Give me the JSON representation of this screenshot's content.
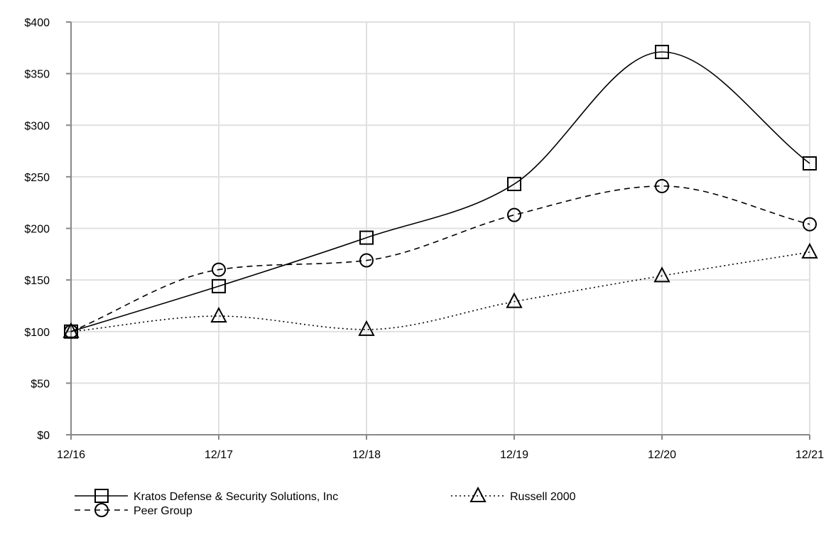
{
  "chart_data": {
    "type": "line",
    "title": "",
    "xlabel": "",
    "ylabel": "",
    "categories": [
      "12/16",
      "12/17",
      "12/18",
      "12/19",
      "12/20",
      "12/21"
    ],
    "ylim": [
      0,
      400
    ],
    "yticks": [
      0,
      50,
      100,
      150,
      200,
      250,
      300,
      350,
      400
    ],
    "ytick_labels": [
      "$0",
      "$50",
      "$100",
      "$150",
      "$200",
      "$250",
      "$300",
      "$350",
      "$400"
    ],
    "grid": true,
    "legend_position": "bottom",
    "series": [
      {
        "name": "Kratos Defense & Security Solutions, Inc",
        "marker": "square",
        "line_style": "solid",
        "values": [
          100,
          144,
          191,
          243,
          371,
          263
        ]
      },
      {
        "name": "Peer Group",
        "marker": "circle",
        "line_style": "dashed",
        "values": [
          100,
          160,
          169,
          213,
          241,
          204
        ]
      },
      {
        "name": "Russell 2000",
        "marker": "triangle",
        "line_style": "dotted",
        "values": [
          100,
          115,
          102,
          129,
          154,
          177
        ]
      }
    ]
  },
  "colors": {
    "line": "#000000",
    "grid": "#e0e0e0",
    "axis": "#888888"
  }
}
